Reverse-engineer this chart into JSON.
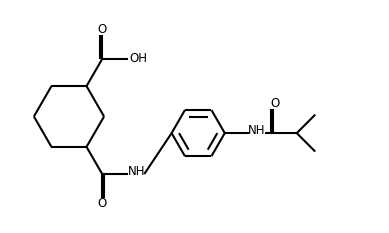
{
  "bg_color": "#ffffff",
  "line_color": "#000000",
  "line_width": 1.5,
  "font_size": 8.5,
  "figsize": [
    3.89,
    2.33
  ],
  "dpi": 100,
  "xlim": [
    0,
    10.5
  ],
  "ylim": [
    0,
    6.2
  ]
}
